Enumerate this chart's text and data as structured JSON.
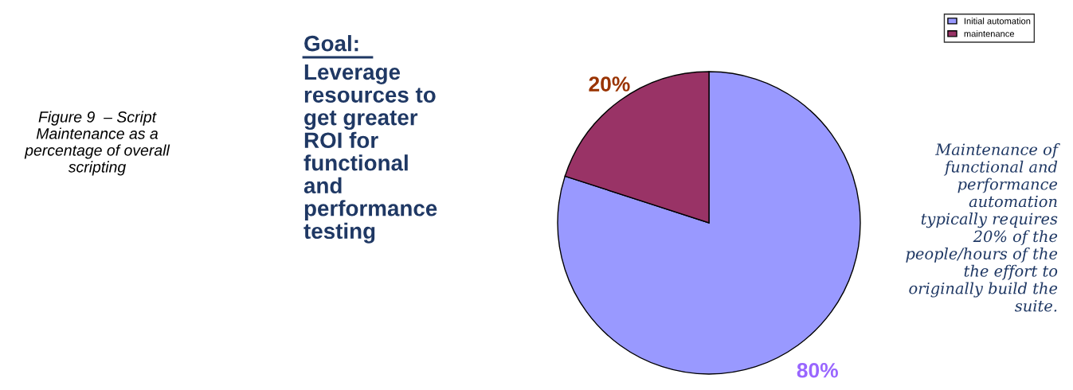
{
  "chart_data": {
    "type": "pie",
    "categories": [
      "Initial automation",
      "maintenance"
    ],
    "values": [
      80,
      20
    ],
    "colors": [
      "#9999ff",
      "#993366"
    ],
    "value_labels": [
      "80%",
      "20%"
    ],
    "legend": "top right",
    "annotations": [
      "Figure 9  – Script Maintenance as a percentage of overall scripting",
      "Goal:",
      "Leverage\nresources to\nget greater\nROI for\nfunctional\nand\nperformance\ntesting",
      "Maintenance of\nfunctional and\nperformance\nautomation\ntypically requires\n20% of the\npeople/hours of the\nthe effort to\noriginally build the\nsuite."
    ]
  }
}
